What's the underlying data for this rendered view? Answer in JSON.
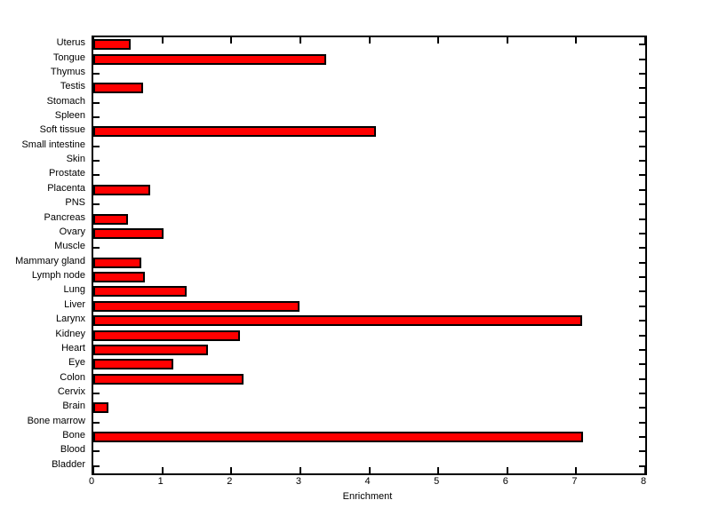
{
  "chart_data": {
    "type": "bar",
    "orientation": "horizontal",
    "title": "",
    "xlabel": "Enrichment",
    "ylabel": "",
    "xlim": [
      0,
      8
    ],
    "x_ticks": [
      0,
      1,
      2,
      3,
      4,
      5,
      6,
      7,
      8
    ],
    "grid": false,
    "legend": null,
    "bar_color": "#ff0000",
    "bar_border_color": "#000000",
    "axis_color": "#000000",
    "background_color": "#ffffff",
    "categories": [
      "Uterus",
      "Tongue",
      "Thymus",
      "Testis",
      "Stomach",
      "Spleen",
      "Soft tissue",
      "Small intestine",
      "Skin",
      "Prostate",
      "Placenta",
      "PNS",
      "Pancreas",
      "Ovary",
      "Muscle",
      "Mammary gland",
      "Lymph node",
      "Lung",
      "Liver",
      "Larynx",
      "Kidney",
      "Heart",
      "Eye",
      "Colon",
      "Cervix",
      "Brain",
      "Bone marrow",
      "Bone",
      "Blood",
      "Bladder"
    ],
    "values": [
      0.54,
      3.38,
      0,
      0.72,
      0,
      0,
      4.1,
      0,
      0,
      0,
      0.83,
      0,
      0.5,
      1.02,
      0,
      0.7,
      0.75,
      1.35,
      2.99,
      7.08,
      2.12,
      1.66,
      1.16,
      2.18,
      0,
      0.22,
      0,
      7.1,
      0,
      0
    ]
  }
}
